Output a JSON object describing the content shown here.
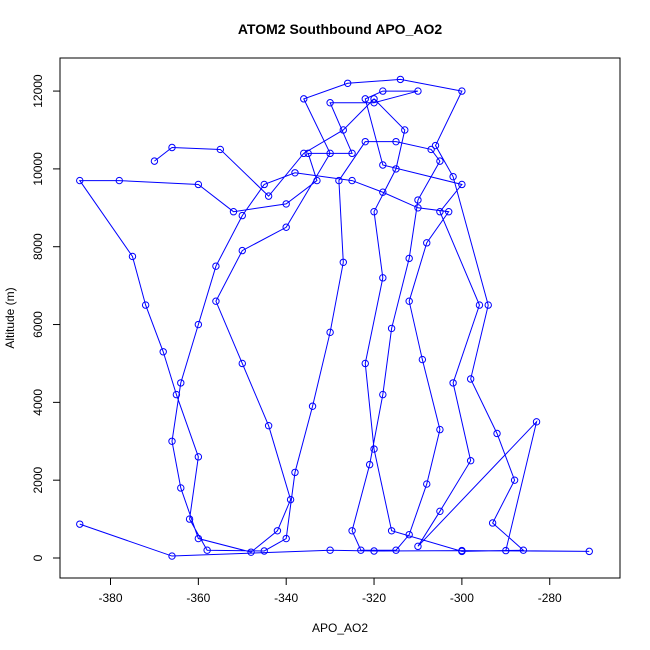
{
  "chart_data": {
    "type": "line",
    "title": "ATOM2 Southbound APO_AO2",
    "xlabel": "APO_AO2",
    "ylabel": "Altitude (m)",
    "color": "#0000ff",
    "markers": true,
    "grid": false,
    "xlim": [
      -391.5,
      -264
    ],
    "ylim": [
      -514,
      12850
    ],
    "xticks": [
      -380,
      -360,
      -340,
      -320,
      -300,
      -280
    ],
    "yticks": [
      0,
      2000,
      4000,
      6000,
      8000,
      10000,
      12000
    ],
    "x": [
      -387,
      -366,
      -330,
      -320,
      -300,
      -271,
      -290,
      -283,
      -310,
      -305,
      -298,
      -302,
      -296,
      -305,
      -300,
      -318,
      -322,
      -318,
      -310,
      -320,
      -330,
      -325,
      -335,
      -333,
      -340,
      -352,
      -360,
      -378,
      -387,
      -375,
      -372,
      -368,
      -365,
      -360,
      -362,
      -358,
      -345,
      -340,
      -338,
      -334,
      -330,
      -327,
      -328,
      -322,
      -315,
      -307,
      -305,
      -310,
      -312,
      -316,
      -318,
      -321,
      -325,
      -323,
      -315,
      -312,
      -308,
      -305,
      -309,
      -312,
      -308,
      -303,
      -310,
      -318,
      -325,
      -338,
      -345,
      -350,
      -356,
      -360,
      -364,
      -366,
      -364,
      -360,
      -348,
      -342,
      -339,
      -344,
      -350,
      -356,
      -350,
      -340,
      -330,
      -336,
      -326,
      -314,
      -300,
      -306,
      -302,
      -294,
      -298,
      -292,
      -288,
      -293,
      -286,
      -300,
      -316,
      -320,
      -322,
      -318,
      -320,
      -315,
      -313,
      -320,
      -327,
      -336,
      -344,
      -355,
      -366,
      -370
    ],
    "values": [
      870,
      50,
      200,
      180,
      190,
      170,
      190,
      3500,
      300,
      1200,
      2500,
      4500,
      6500,
      8900,
      9600,
      10100,
      11800,
      12000,
      12000,
      11700,
      11700,
      10400,
      10400,
      9700,
      9100,
      8900,
      9600,
      9700,
      9700,
      7750,
      6500,
      5300,
      4200,
      2600,
      1000,
      200,
      180,
      500,
      2200,
      3900,
      5800,
      7600,
      9700,
      10700,
      10700,
      10500,
      10200,
      9200,
      7700,
      5900,
      4200,
      2400,
      700,
      200,
      200,
      600,
      1900,
      3300,
      5100,
      6600,
      8100,
      8900,
      9000,
      9400,
      9700,
      9900,
      9600,
      8800,
      7500,
      6000,
      4500,
      3000,
      1800,
      500,
      150,
      700,
      1500,
      3400,
      5000,
      6600,
      7900,
      8500,
      10400,
      11800,
      12200,
      12300,
      12000,
      10600,
      9800,
      6500,
      4600,
      3200,
      2000,
      900,
      200,
      170,
      700,
      2800,
      5000,
      7200,
      8900,
      10000,
      11000,
      11800,
      11000,
      10400,
      9300,
      10500,
      10550,
      10200
    ]
  }
}
